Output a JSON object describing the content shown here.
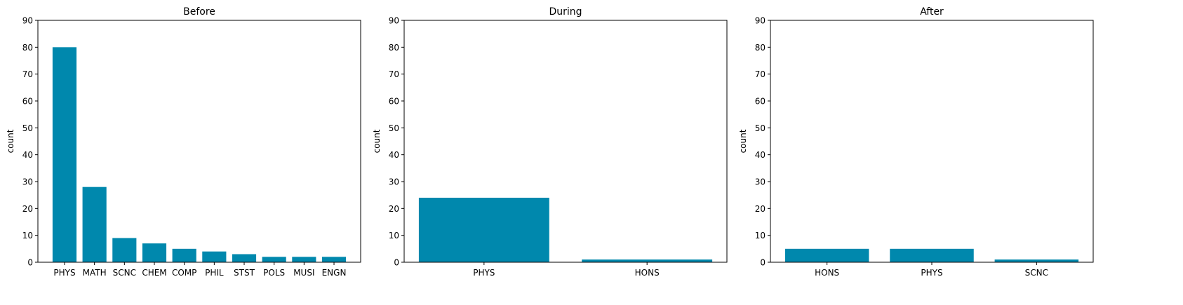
{
  "chart_data": [
    {
      "type": "bar",
      "title": "Before",
      "xlabel": "",
      "ylabel": "count",
      "ylim": [
        0,
        90
      ],
      "yticks": [
        0,
        10,
        20,
        30,
        40,
        50,
        60,
        70,
        80,
        90
      ],
      "categories": [
        "PHYS",
        "MATH",
        "SCNC",
        "CHEM",
        "COMP",
        "PHIL",
        "STST",
        "POLS",
        "MUSI",
        "ENGN"
      ],
      "values": [
        80,
        28,
        9,
        7,
        5,
        4,
        3,
        2,
        2,
        2
      ],
      "bar_color": "#0088ad",
      "grid": false
    },
    {
      "type": "bar",
      "title": "During",
      "xlabel": "",
      "ylabel": "count",
      "ylim": [
        0,
        90
      ],
      "yticks": [
        0,
        10,
        20,
        30,
        40,
        50,
        60,
        70,
        80,
        90
      ],
      "categories": [
        "PHYS",
        "HONS"
      ],
      "values": [
        24,
        1
      ],
      "bar_color": "#0088ad",
      "grid": false
    },
    {
      "type": "bar",
      "title": "After",
      "xlabel": "",
      "ylabel": "count",
      "ylim": [
        0,
        90
      ],
      "yticks": [
        0,
        10,
        20,
        30,
        40,
        50,
        60,
        70,
        80,
        90
      ],
      "categories": [
        "HONS",
        "PHYS",
        "SCNC"
      ],
      "values": [
        5,
        5,
        1
      ],
      "bar_color": "#0088ad",
      "grid": false
    }
  ]
}
